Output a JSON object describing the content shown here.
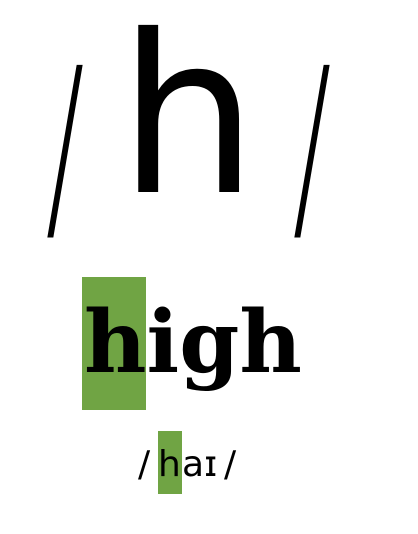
{
  "phoneme": {
    "slash_left": "/",
    "letter": "h",
    "slash_right": "/"
  },
  "example": {
    "word_highlight": "h",
    "word_rest": "igh"
  },
  "pronunciation": {
    "slash_left": "/",
    "highlight": "h",
    "rest": "aɪ",
    "slash_right": "/"
  },
  "colors": {
    "highlight": "#70a444",
    "text": "#000000",
    "background": "#ffffff"
  }
}
